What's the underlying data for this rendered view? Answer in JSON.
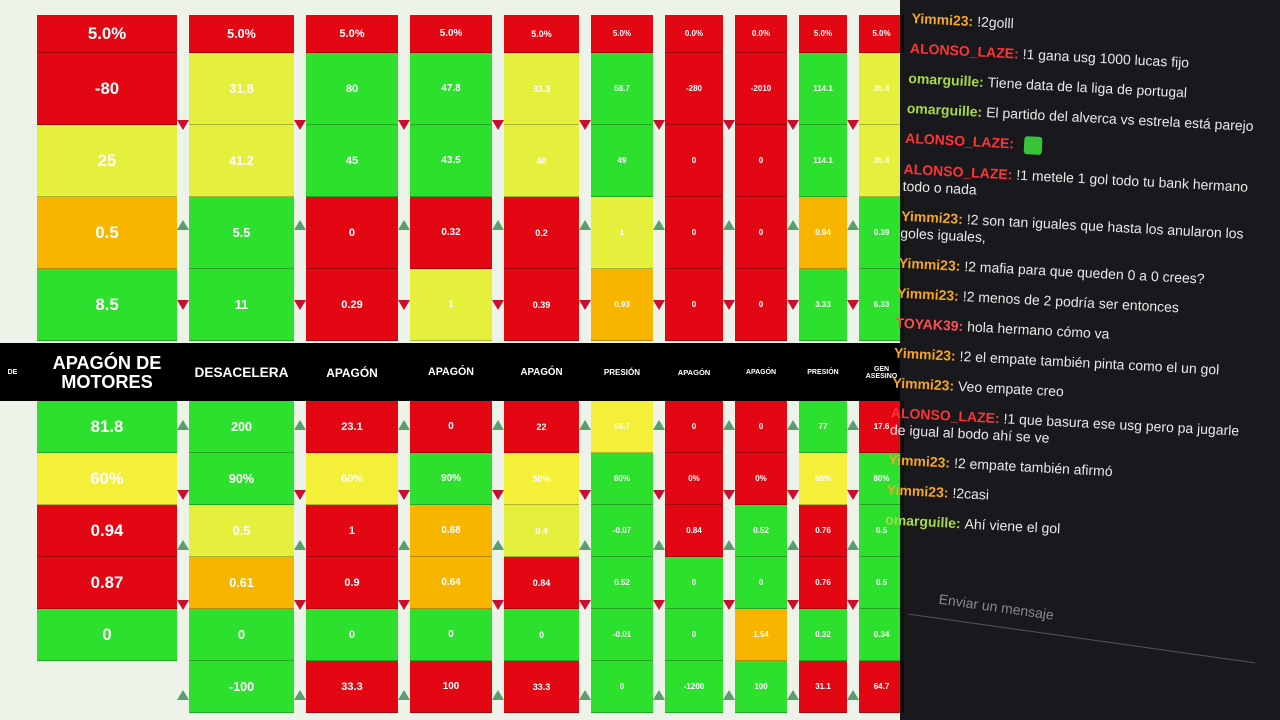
{
  "sheet": {
    "columns": [
      {
        "label": "DE",
        "header": null,
        "above": [],
        "below": []
      },
      {
        "label": "APAGÓN DE MOTORES",
        "header": "5.0%",
        "above": [
          {
            "text": "-80",
            "color": "#e30613"
          },
          {
            "text": "25",
            "color": "#e4f03c"
          },
          {
            "text": "0.5",
            "color": "#f7b500"
          },
          {
            "text": "8.5",
            "color": "#2ee02e"
          }
        ],
        "below": [
          {
            "text": "81.8",
            "color": "#2ee02e"
          },
          {
            "text": "60%",
            "color": "#f4f03a"
          },
          {
            "text": "0.94",
            "color": "#e30613"
          },
          {
            "text": "0.87",
            "color": "#e30613"
          },
          {
            "text": "0",
            "color": "#2ee02e"
          }
        ]
      },
      {
        "label": "DESACELERA",
        "header": "5.0%",
        "above": [
          {
            "text": "31.8",
            "color": "#e4f03c"
          },
          {
            "text": "41.2",
            "color": "#e4f03c"
          },
          {
            "text": "5.5",
            "color": "#2ee02e"
          },
          {
            "text": "11",
            "color": "#2ee02e"
          }
        ],
        "below": [
          {
            "text": "200",
            "color": "#2ee02e"
          },
          {
            "text": "90%",
            "color": "#2ee02e"
          },
          {
            "text": "0.5",
            "color": "#e4f03c"
          },
          {
            "text": "0.61",
            "color": "#f7b500"
          },
          {
            "text": "0",
            "color": "#2ee02e"
          },
          {
            "text": "-100",
            "color": "#2ee02e"
          }
        ]
      },
      {
        "label": "APAGÓN",
        "header": "5.0%",
        "above": [
          {
            "text": "80",
            "color": "#2ee02e"
          },
          {
            "text": "45",
            "color": "#2ee02e"
          },
          {
            "text": "0",
            "color": "#e30613"
          },
          {
            "text": "0.29",
            "color": "#e30613"
          }
        ],
        "below": [
          {
            "text": "23.1",
            "color": "#e30613"
          },
          {
            "text": "60%",
            "color": "#f4f03a"
          },
          {
            "text": "1",
            "color": "#e30613"
          },
          {
            "text": "0.9",
            "color": "#e30613"
          },
          {
            "text": "0",
            "color": "#2ee02e"
          },
          {
            "text": "33.3",
            "color": "#e30613"
          }
        ]
      },
      {
        "label": "APAGÓN",
        "header": "5.0%",
        "above": [
          {
            "text": "47.8",
            "color": "#2ee02e"
          },
          {
            "text": "43.5",
            "color": "#2ee02e"
          },
          {
            "text": "0.32",
            "color": "#e30613"
          },
          {
            "text": "1",
            "color": "#e4f03c"
          }
        ],
        "below": [
          {
            "text": "0",
            "color": "#e30613"
          },
          {
            "text": "90%",
            "color": "#2ee02e"
          },
          {
            "text": "0.68",
            "color": "#f7b500"
          },
          {
            "text": "0.64",
            "color": "#f7b500"
          },
          {
            "text": "0",
            "color": "#2ee02e"
          },
          {
            "text": "100",
            "color": "#e30613"
          }
        ]
      },
      {
        "label": "APAGÓN",
        "header": "5.0%",
        "above": [
          {
            "text": "33.3",
            "color": "#e4f03c"
          },
          {
            "text": "40",
            "color": "#e4f03c"
          },
          {
            "text": "0.2",
            "color": "#e30613"
          },
          {
            "text": "0.39",
            "color": "#e30613"
          }
        ],
        "below": [
          {
            "text": "22",
            "color": "#e30613"
          },
          {
            "text": "50%",
            "color": "#f4f03a"
          },
          {
            "text": "0.4",
            "color": "#e4f03c"
          },
          {
            "text": "0.84",
            "color": "#e30613"
          },
          {
            "text": "0",
            "color": "#2ee02e"
          },
          {
            "text": "33.3",
            "color": "#e30613"
          }
        ]
      },
      {
        "label": "PRESIÓN",
        "header": "5.0%",
        "above": [
          {
            "text": "58.7",
            "color": "#2ee02e"
          },
          {
            "text": "49",
            "color": "#2ee02e"
          },
          {
            "text": "1",
            "color": "#e4f03c"
          },
          {
            "text": "0.93",
            "color": "#f7b500"
          }
        ],
        "below": [
          {
            "text": "66.7",
            "color": "#f4f03a"
          },
          {
            "text": "80%",
            "color": "#2ee02e"
          },
          {
            "text": "-0.07",
            "color": "#2ee02e"
          },
          {
            "text": "0.52",
            "color": "#2ee02e"
          },
          {
            "text": "-0.01",
            "color": "#2ee02e"
          },
          {
            "text": "0",
            "color": "#2ee02e"
          }
        ]
      },
      {
        "label": "APAGÓN",
        "header": "0.0%",
        "above": [
          {
            "text": "-280",
            "color": "#e30613"
          },
          {
            "text": "0",
            "color": "#e30613"
          },
          {
            "text": "0",
            "color": "#e30613"
          },
          {
            "text": "0",
            "color": "#e30613"
          }
        ],
        "below": [
          {
            "text": "0",
            "color": "#e30613"
          },
          {
            "text": "0%",
            "color": "#e30613"
          },
          {
            "text": "0.84",
            "color": "#e30613"
          },
          {
            "text": "0",
            "color": "#2ee02e"
          },
          {
            "text": "0",
            "color": "#2ee02e"
          },
          {
            "text": "-1200",
            "color": "#2ee02e"
          }
        ]
      },
      {
        "label": "APAGÓN",
        "header": "0.0%",
        "above": [
          {
            "text": "-2010",
            "color": "#e30613"
          },
          {
            "text": "0",
            "color": "#e30613"
          },
          {
            "text": "0",
            "color": "#e30613"
          },
          {
            "text": "0",
            "color": "#e30613"
          }
        ],
        "below": [
          {
            "text": "0",
            "color": "#e30613"
          },
          {
            "text": "0%",
            "color": "#e30613"
          },
          {
            "text": "0.52",
            "color": "#2ee02e"
          },
          {
            "text": "0",
            "color": "#2ee02e"
          },
          {
            "text": "1.54",
            "color": "#f7b500"
          },
          {
            "text": "100",
            "color": "#2ee02e"
          }
        ]
      },
      {
        "label": "PRESIÓN",
        "header": "5.0%",
        "above": [
          {
            "text": "114.1",
            "color": "#2ee02e"
          },
          {
            "text": "114.1",
            "color": "#2ee02e"
          },
          {
            "text": "0.94",
            "color": "#f7b500"
          },
          {
            "text": "3.33",
            "color": "#2ee02e"
          }
        ],
        "below": [
          {
            "text": "77",
            "color": "#2ee02e"
          },
          {
            "text": "50%",
            "color": "#f4f03a"
          },
          {
            "text": "0.76",
            "color": "#e30613"
          },
          {
            "text": "0.76",
            "color": "#e30613"
          },
          {
            "text": "0.32",
            "color": "#2ee02e"
          },
          {
            "text": "31.1",
            "color": "#e30613"
          }
        ]
      },
      {
        "label": "GEN ASESINO",
        "header": "5.0%",
        "above": [
          {
            "text": "35.4",
            "color": "#e4f03c"
          },
          {
            "text": "35.4",
            "color": "#e4f03c"
          },
          {
            "text": "0.39",
            "color": "#2ee02e"
          },
          {
            "text": "6.33",
            "color": "#2ee02e"
          }
        ],
        "below": [
          {
            "text": "17.6",
            "color": "#e30613"
          },
          {
            "text": "80%",
            "color": "#2ee02e"
          },
          {
            "text": "0.5",
            "color": "#2ee02e"
          },
          {
            "text": "0.5",
            "color": "#2ee02e"
          },
          {
            "text": "0.34",
            "color": "#2ee02e"
          },
          {
            "text": "64.7",
            "color": "#e30613"
          }
        ]
      }
    ]
  },
  "chat": {
    "messages": [
      {
        "user": "Yimmi23:",
        "color": "#f5a623",
        "text": "!2golll"
      },
      {
        "user": "ALONSO_LAZE:",
        "color": "#ff3434",
        "text": "!1 gana usg 1000 lucas fijo"
      },
      {
        "user": "omarguille:",
        "color": "#a6d94a",
        "text": "Tiene data de la liga de portugal"
      },
      {
        "user": "omarguille:",
        "color": "#a6d94a",
        "text": "El partido del alverca vs estrela está parejo"
      },
      {
        "user": "ALONSO_LAZE:",
        "color": "#ff3434",
        "emote": true
      },
      {
        "user": "ALONSO_LAZE:",
        "color": "#ff3434",
        "text": "!1 metele 1 gol todo tu bank hermano todo o nada"
      },
      {
        "user": "Yimmi23:",
        "color": "#f5a623",
        "text": "!2 son tan iguales que hasta los anularon los goles iguales,"
      },
      {
        "user": "Yimmi23:",
        "color": "#f5a623",
        "text": "!2 mafia para que queden 0 a 0 crees?"
      },
      {
        "user": "Yimmi23:",
        "color": "#f5a623",
        "text": "!2 menos de 2 podría ser entonces"
      },
      {
        "user": "TOYAK39:",
        "color": "#ff4d4d",
        "text": "hola hermano cómo va"
      },
      {
        "user": "Yimmi23:",
        "color": "#f5a623",
        "text": "!2 el empate también pinta como el un gol"
      },
      {
        "user": "Yimmi23:",
        "color": "#f5a623",
        "text": "Veo empate creo"
      },
      {
        "user": "ALONSO_LAZE:",
        "color": "#ff3434",
        "text": "!1 que basura ese usg pero pa jugarle de igual al bodo ahí se ve"
      },
      {
        "user": "Yimmi23:",
        "color": "#f5a623",
        "text": "!2 empate también afirmó"
      },
      {
        "user": "Yimmi23:",
        "color": "#f5a623",
        "text": "!2casi"
      },
      {
        "user": "omarguille:",
        "color": "#a6d94a",
        "text": "Ahí viene el gol"
      }
    ],
    "input_placeholder": "Enviar un mensaje"
  }
}
